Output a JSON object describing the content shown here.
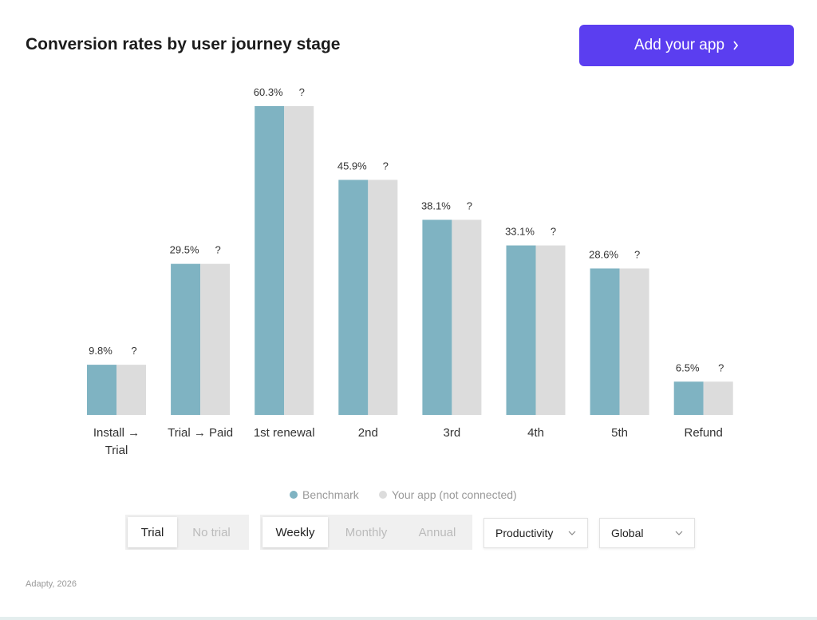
{
  "header": {
    "title": "Conversion rates by user journey stage",
    "button": "Add your app"
  },
  "chart_data": {
    "type": "bar",
    "categories": [
      "Install → Trial",
      "Trial → Paid",
      "1st renewal",
      "2nd",
      "3rd",
      "4th",
      "5th",
      "Refund"
    ],
    "series": [
      {
        "name": "Benchmark",
        "color": "#7fb3c2",
        "values": [
          9.8,
          29.5,
          60.3,
          45.9,
          38.1,
          33.1,
          28.6,
          6.5
        ],
        "value_labels": [
          "9.8%",
          "29.5%",
          "60.3%",
          "45.9%",
          "38.1%",
          "33.1%",
          "28.6%",
          "6.5%"
        ]
      },
      {
        "name": "Your app (not connected)",
        "color": "#dcdcdc",
        "values": [
          null,
          null,
          null,
          null,
          null,
          null,
          null,
          null
        ],
        "value_labels": [
          "?",
          "?",
          "?",
          "?",
          "?",
          "?",
          "?",
          "?"
        ]
      }
    ]
  },
  "controls": {
    "trial_options": [
      "Trial",
      "No trial"
    ],
    "period_options": [
      "Weekly",
      "Monthly",
      "Annual"
    ],
    "dropdowns": [
      "Productivity",
      "Global"
    ]
  },
  "footer": "Adapty, 2026"
}
